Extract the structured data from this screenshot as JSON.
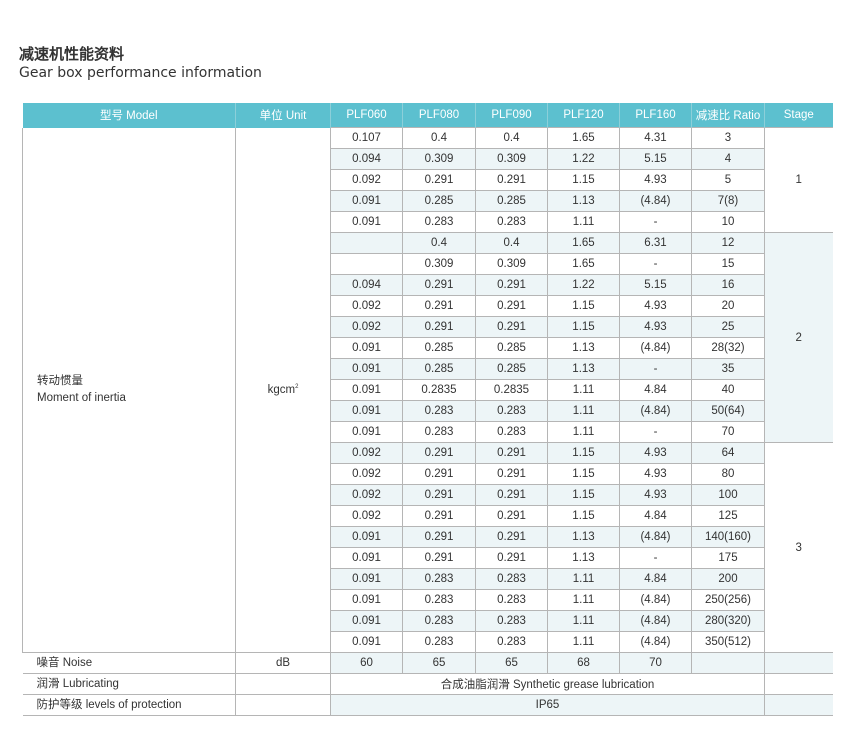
{
  "title_cn": "减速机性能资料",
  "title_en": "Gear box performance information",
  "headers": [
    "型号 Model",
    "单位 Unit",
    "PLF060",
    "PLF080",
    "PLF090",
    "PLF120",
    "PLF160",
    "减速比 Ratio",
    "Stage"
  ],
  "inertia": {
    "label_cn": "转动惯量",
    "label_en": "Moment of inertia",
    "unit": "kgcm",
    "unit_sup": "2"
  },
  "rows": [
    [
      "0.107",
      "0.4",
      "0.4",
      "1.65",
      "4.31",
      "3"
    ],
    [
      "0.094",
      "0.309",
      "0.309",
      "1.22",
      "5.15",
      "4"
    ],
    [
      "0.092",
      "0.291",
      "0.291",
      "1.15",
      "4.93",
      "5"
    ],
    [
      "0.091",
      "0.285",
      "0.285",
      "1.13",
      "(4.84)",
      "7(8)"
    ],
    [
      "0.091",
      "0.283",
      "0.283",
      "1.11",
      "-",
      "10"
    ],
    [
      "",
      "0.4",
      "0.4",
      "1.65",
      "6.31",
      "12"
    ],
    [
      "",
      "0.309",
      "0.309",
      "1.65",
      "-",
      "15"
    ],
    [
      "0.094",
      "0.291",
      "0.291",
      "1.22",
      "5.15",
      "16"
    ],
    [
      "0.092",
      "0.291",
      "0.291",
      "1.15",
      "4.93",
      "20"
    ],
    [
      "0.092",
      "0.291",
      "0.291",
      "1.15",
      "4.93",
      "25"
    ],
    [
      "0.091",
      "0.285",
      "0.285",
      "1.13",
      "(4.84)",
      "28(32)"
    ],
    [
      "0.091",
      "0.285",
      "0.285",
      "1.13",
      "-",
      "35"
    ],
    [
      "0.091",
      "0.2835",
      "0.2835",
      "1.11",
      "4.84",
      "40"
    ],
    [
      "0.091",
      "0.283",
      "0.283",
      "1.11",
      "(4.84)",
      "50(64)"
    ],
    [
      "0.091",
      "0.283",
      "0.283",
      "1.11",
      "-",
      "70"
    ],
    [
      "0.092",
      "0.291",
      "0.291",
      "1.15",
      "4.93",
      "64"
    ],
    [
      "0.092",
      "0.291",
      "0.291",
      "1.15",
      "4.93",
      "80"
    ],
    [
      "0.092",
      "0.291",
      "0.291",
      "1.15",
      "4.93",
      "100"
    ],
    [
      "0.092",
      "0.291",
      "0.291",
      "1.15",
      "4.84",
      "125"
    ],
    [
      "0.091",
      "0.291",
      "0.291",
      "1.13",
      "(4.84)",
      "140(160)"
    ],
    [
      "0.091",
      "0.291",
      "0.291",
      "1.13",
      "-",
      "175"
    ],
    [
      "0.091",
      "0.283",
      "0.283",
      "1.11",
      "4.84",
      "200"
    ],
    [
      "0.091",
      "0.283",
      "0.283",
      "1.11",
      "(4.84)",
      "250(256)"
    ],
    [
      "0.091",
      "0.283",
      "0.283",
      "1.11",
      "(4.84)",
      "280(320)"
    ],
    [
      "0.091",
      "0.283",
      "0.283",
      "1.11",
      "(4.84)",
      "350(512)"
    ]
  ],
  "stages": [
    {
      "label": "1",
      "span": 5
    },
    {
      "label": "2",
      "span": 10
    },
    {
      "label": "3",
      "span": 10
    }
  ],
  "noise": {
    "label": "噪音 Noise",
    "unit": "dB",
    "values": [
      "60",
      "65",
      "65",
      "68",
      "70",
      ""
    ]
  },
  "lubricating": {
    "label": "润滑 Lubricating",
    "value": "合成油脂润滑 Synthetic grease lubrication"
  },
  "protection": {
    "label": "防护等级 levels of protection",
    "value": "IP65"
  },
  "colors": {
    "header": "#5cc0cf",
    "stripe": "#edf5f7",
    "grid": "#b5b5b5"
  }
}
